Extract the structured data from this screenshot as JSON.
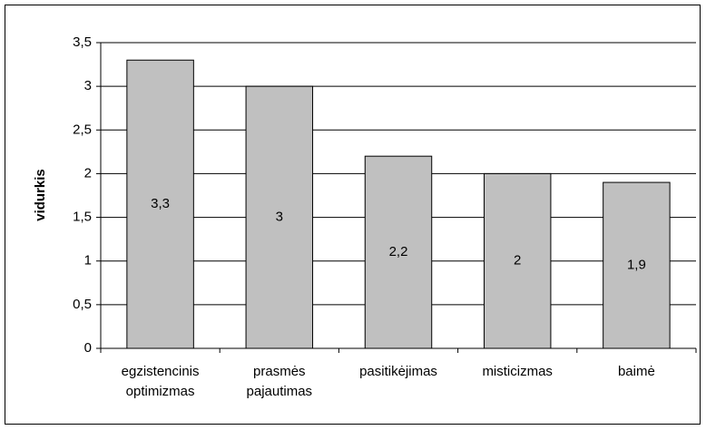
{
  "chart_data": {
    "type": "bar",
    "y_label": "vidurkis",
    "categories": [
      "egzistencinis optimizmas",
      "prasmės pajautimas",
      "pasitikėjimas",
      "misticizmas",
      "baimė"
    ],
    "values": [
      3.3,
      3,
      2.2,
      2,
      1.9
    ],
    "value_labels": [
      "3,3",
      "3",
      "2,2",
      "2",
      "1,9"
    ],
    "color": "#c0c0c0",
    "ylim": [
      0,
      3.5
    ],
    "yticks": [
      0,
      {
        "value": 0.5,
        "label": "0,5"
      },
      1,
      {
        "value": 1.5,
        "label": "1,5"
      },
      2,
      {
        "value": 2.5,
        "label": "2,5"
      },
      3,
      {
        "value": 3.5,
        "label": "3,5"
      }
    ],
    "grid": true
  }
}
